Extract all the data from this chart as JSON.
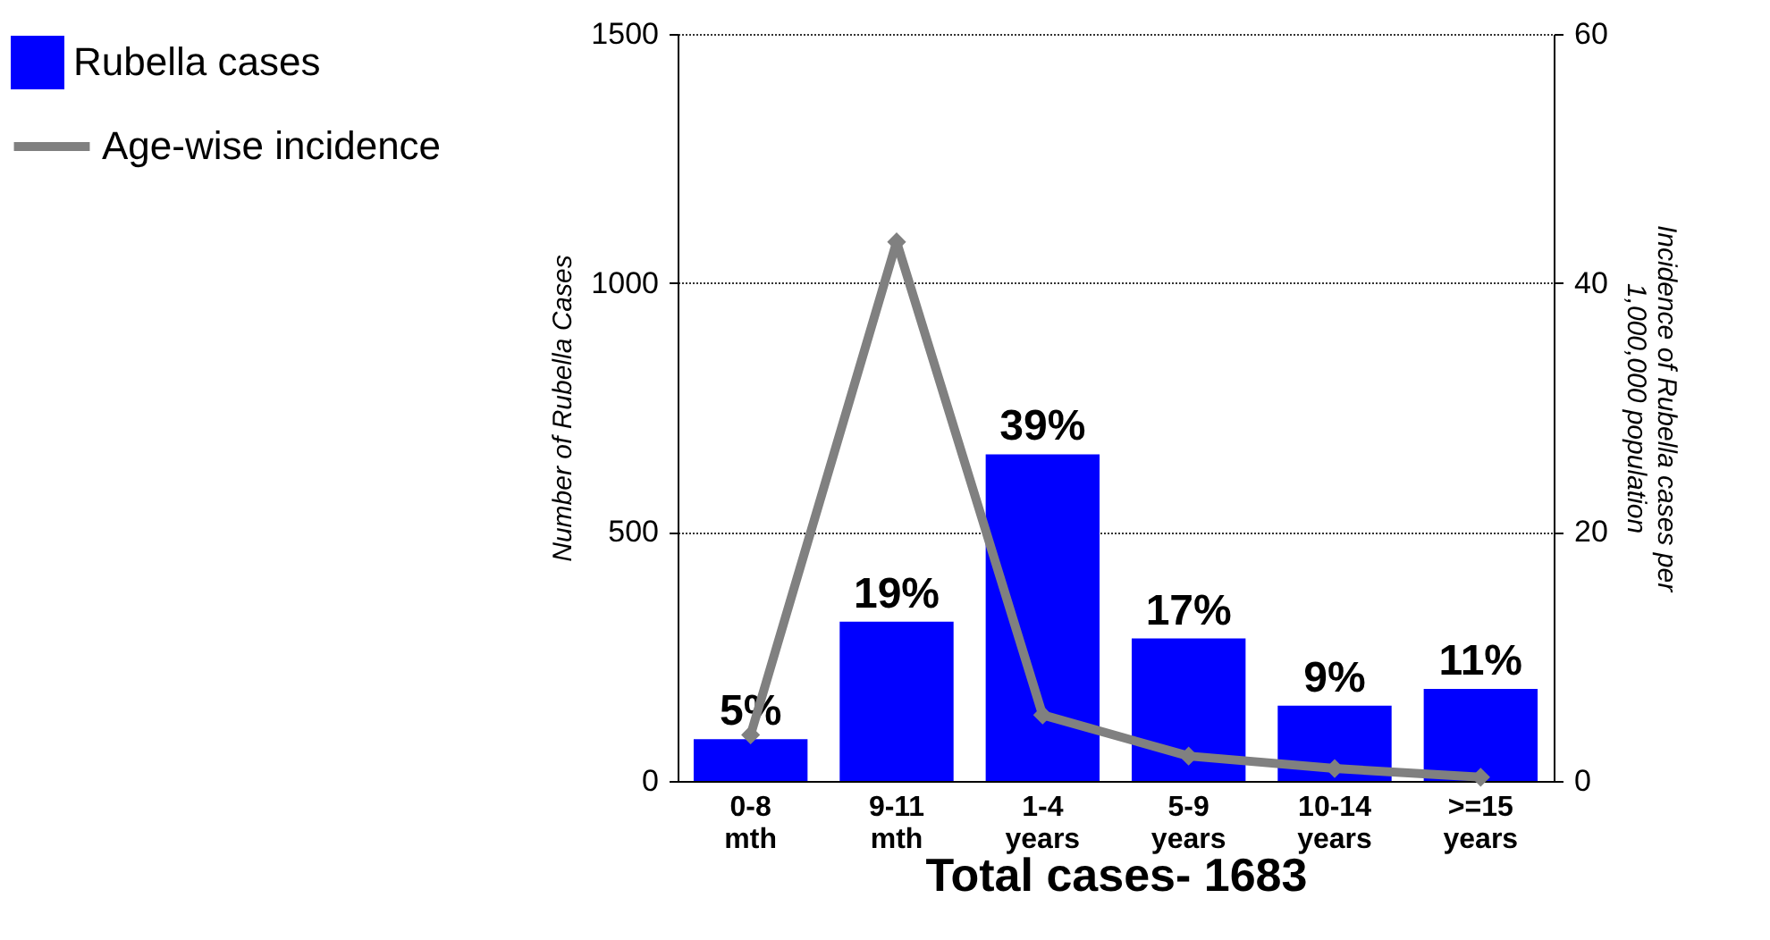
{
  "chart_data": {
    "type": "bar",
    "xlabel": "Total cases- 1683",
    "ylabel": "Number of Rubella Cases",
    "y2label": "Incidence of Rubella cases per 1,000,000 population",
    "categories": [
      "0-8 mth",
      "9-11 mth",
      "1-4 years",
      "5-9 years",
      "10-14 years",
      ">=15 years"
    ],
    "series": [
      {
        "name": "Rubella cases",
        "color": "#0000ff",
        "values": [
          84,
          320,
          656,
          286,
          151,
          185
        ]
      },
      {
        "name": "Age-wise incidence",
        "type": "line",
        "axis": "y2",
        "color": "#808080",
        "marker": "diamond",
        "values": [
          3.7,
          43.3,
          5.3,
          2.0,
          1.0,
          0.3
        ]
      }
    ],
    "annotations": [
      {
        "text": "5%",
        "x": "0-8 mth",
        "y": 84
      },
      {
        "text": "19%",
        "x": "9-11 mth",
        "y": 320
      },
      {
        "text": "39%",
        "x": "1-4 years",
        "y": 656
      },
      {
        "text": "17%",
        "x": "5-9 years",
        "y": 286
      },
      {
        "text": "9%",
        "x": "10-14 years",
        "y": 151
      },
      {
        "text": "11%",
        "x": ">=15 years",
        "y": 185
      }
    ],
    "ylim": [
      0,
      1500
    ],
    "yticks": [
      0,
      500,
      1000,
      1500
    ],
    "y2lim": [
      0,
      60
    ],
    "y2ticks": [
      0,
      20,
      40,
      60
    ],
    "grid": "y",
    "legend": "left"
  }
}
